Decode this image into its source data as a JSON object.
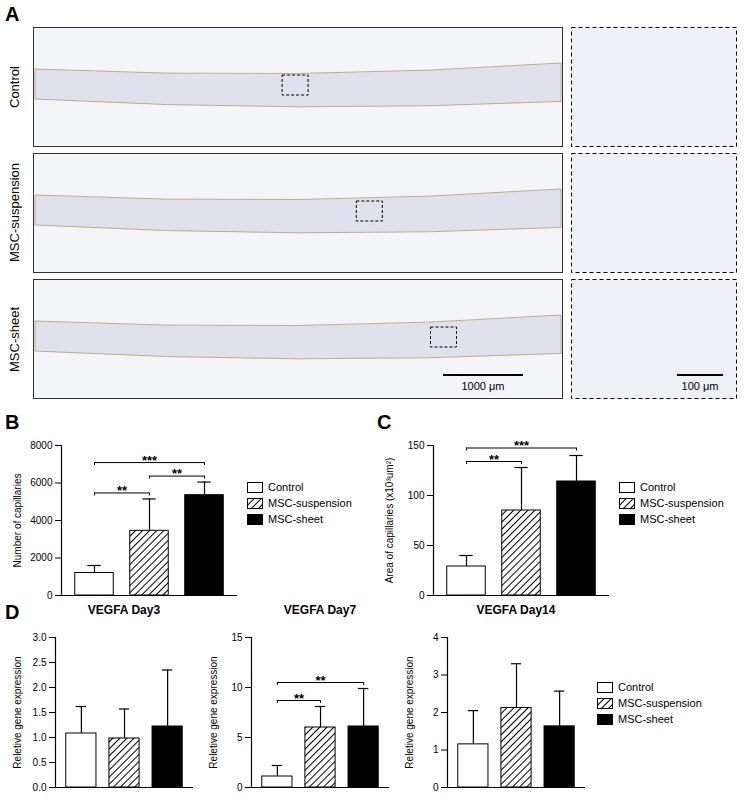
{
  "image_panel": {
    "panel": "A",
    "rows": [
      "Control",
      "MSC-suspension",
      "MSC-sheet"
    ],
    "scale_bars": [
      "1000 μm",
      "100 μm"
    ]
  },
  "chart_data": [
    {
      "type": "bar",
      "panel": "B",
      "y_label": "Number of capillaries",
      "ylim": [
        0,
        8000
      ],
      "yticks": [
        0,
        2000,
        4000,
        6000,
        8000
      ],
      "tick_labels": "y",
      "legend": "right",
      "series": [
        {
          "name": "Control",
          "color": "#ffffff",
          "values": [
            1200
          ],
          "errors": [
            400
          ]
        },
        {
          "name": "MSC-suspension",
          "color": "#000000",
          "marker": "hatch",
          "values": [
            3450
          ],
          "errors": [
            1700
          ]
        },
        {
          "name": "MSC-sheet",
          "color": "#000000",
          "values": [
            5350
          ],
          "errors": [
            700
          ]
        }
      ],
      "annotations": [
        {
          "from": "Control",
          "to": "MSC-suspension",
          "text": "**"
        },
        {
          "from": "Control",
          "to": "MSC-sheet",
          "text": "***"
        },
        {
          "from": "MSC-suspension",
          "to": "MSC-sheet",
          "text": "**"
        }
      ]
    },
    {
      "type": "bar",
      "panel": "C",
      "y_label": "Area of capillaries (x10³um²)",
      "ylim": [
        0,
        150
      ],
      "yticks": [
        0,
        50,
        100,
        150
      ],
      "tick_labels": "y",
      "legend": "right",
      "series": [
        {
          "name": "Control",
          "color": "#ffffff",
          "values": [
            29
          ],
          "errors": [
            11
          ]
        },
        {
          "name": "MSC-suspension",
          "color": "#000000",
          "marker": "hatch",
          "values": [
            85
          ],
          "errors": [
            43
          ]
        },
        {
          "name": "MSC-sheet",
          "color": "#000000",
          "values": [
            114
          ],
          "errors": [
            26
          ]
        }
      ],
      "annotations": [
        {
          "from": "Control",
          "to": "MSC-suspension",
          "text": "**"
        },
        {
          "from": "Control",
          "to": "MSC-sheet",
          "text": "***"
        }
      ]
    },
    {
      "type": "bar",
      "panel": "D",
      "title": "VEGFA Day3",
      "y_label": "Reletive gene expression",
      "ylim": [
        0,
        3
      ],
      "yticks": [
        {
          "value": 0,
          "label": "0.0"
        },
        {
          "value": 0.5,
          "label": "0.5"
        },
        {
          "value": 1,
          "label": "1.0"
        },
        {
          "value": 1.5,
          "label": "1.5"
        },
        {
          "value": 2,
          "label": "2.0"
        },
        {
          "value": 2.5,
          "label": "2.5"
        },
        {
          "value": 3,
          "label": "3.0"
        }
      ],
      "tick_labels": "y",
      "series": [
        {
          "name": "Control",
          "color": "#ffffff",
          "values": [
            1.08
          ],
          "errors": [
            0.54
          ]
        },
        {
          "name": "MSC-suspension",
          "color": "#000000",
          "marker": "hatch",
          "values": [
            0.98
          ],
          "errors": [
            0.59
          ]
        },
        {
          "name": "MSC-sheet",
          "color": "#000000",
          "values": [
            1.22
          ],
          "errors": [
            1.13
          ]
        }
      ],
      "annotations": []
    },
    {
      "type": "bar",
      "title": "VEGFA Day7",
      "y_label": "Reletive gene expression",
      "ylim": [
        0,
        15
      ],
      "yticks": [
        0,
        5,
        10,
        15
      ],
      "tick_labels": "y",
      "series": [
        {
          "name": "Control",
          "color": "#ffffff",
          "values": [
            1.1
          ],
          "errors": [
            1.1
          ]
        },
        {
          "name": "MSC-suspension",
          "color": "#000000",
          "marker": "hatch",
          "values": [
            6.0
          ],
          "errors": [
            2.1
          ]
        },
        {
          "name": "MSC-sheet",
          "color": "#000000",
          "values": [
            6.1
          ],
          "errors": [
            3.8
          ]
        }
      ],
      "annotations": [
        {
          "from": "Control",
          "to": "MSC-suspension",
          "text": "**"
        },
        {
          "from": "Control",
          "to": "MSC-sheet",
          "text": "**"
        }
      ]
    },
    {
      "type": "bar",
      "title": "VEGFA Day14",
      "y_label": "Reletive gene expression",
      "ylim": [
        0,
        4
      ],
      "yticks": [
        0,
        1,
        2,
        3,
        4
      ],
      "tick_labels": "y",
      "legend": "right",
      "series": [
        {
          "name": "Control",
          "color": "#ffffff",
          "values": [
            1.15
          ],
          "errors": [
            0.9
          ]
        },
        {
          "name": "MSC-suspension",
          "color": "#000000",
          "marker": "hatch",
          "values": [
            2.12
          ],
          "errors": [
            1.18
          ]
        },
        {
          "name": "MSC-sheet",
          "color": "#000000",
          "values": [
            1.63
          ],
          "errors": [
            0.94
          ]
        }
      ],
      "annotations": []
    }
  ]
}
